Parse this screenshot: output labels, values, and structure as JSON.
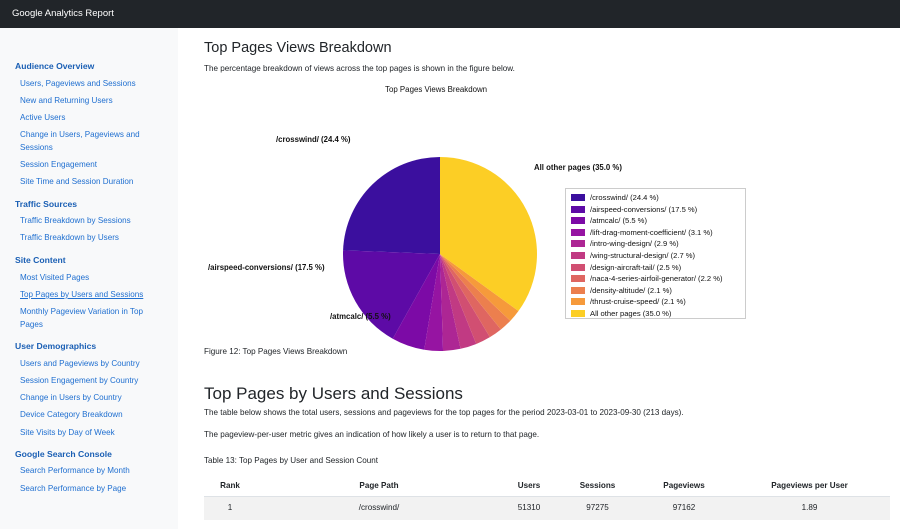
{
  "app_title": "Google Analytics Report",
  "sidebar": {
    "sections": [
      {
        "title": "Audience Overview",
        "items": [
          "Users, Pageviews and Sessions",
          "New and Returning Users",
          "Active Users",
          "Change in Users, Pageviews and Sessions",
          "Session Engagement",
          "Site Time and Session Duration"
        ]
      },
      {
        "title": "Traffic Sources",
        "items": [
          "Traffic Breakdown by Sessions",
          "Traffic Breakdown by Users"
        ]
      },
      {
        "title": "Site Content",
        "items": [
          "Most Visited Pages",
          "Top Pages by Users and Sessions",
          "Monthly Pageview Variation in Top Pages"
        ]
      },
      {
        "title": "User Demographics",
        "items": [
          "Users and Pageviews by Country",
          "Session Engagement by Country",
          "Change in Users by Country",
          "Device Category Breakdown",
          "Site Visits by Day of Week"
        ]
      },
      {
        "title": "Google Search Console",
        "items": [
          "Search Performance by Month",
          "Search Performance by Page"
        ]
      }
    ],
    "active_item": "Top Pages by Users and Sessions"
  },
  "section1": {
    "heading": "Top Pages Views Breakdown",
    "intro": "The percentage breakdown of views across the top pages is shown in the figure below.",
    "figure_caption": "Figure 12: Top Pages Views Breakdown"
  },
  "chart_data": {
    "type": "pie",
    "title": "Top Pages Views Breakdown",
    "legend_position": "right",
    "slices": [
      {
        "label": "/crosswind/ (24.4 %)",
        "value": 24.4,
        "color": "#3b0f9e"
      },
      {
        "label": "/airspeed-conversions/ (17.5 %)",
        "value": 17.5,
        "color": "#5d0aa6"
      },
      {
        "label": "/atmcalc/ (5.5 %)",
        "value": 5.5,
        "color": "#7c0aa6"
      },
      {
        "label": "/lift-drag-moment-coefficient/ (3.1 %)",
        "value": 3.1,
        "color": "#9614a2"
      },
      {
        "label": "/intro-wing-design/ (2.9 %)",
        "value": 2.9,
        "color": "#ad2694"
      },
      {
        "label": "/wing-structural-design/ (2.7 %)",
        "value": 2.7,
        "color": "#c13a83"
      },
      {
        "label": "/design-aircraft-tail/ (2.5 %)",
        "value": 2.5,
        "color": "#d14f72"
      },
      {
        "label": "/naca-4-series-airfoil-generator/ (2.2 %)",
        "value": 2.2,
        "color": "#df6661"
      },
      {
        "label": "/density-altitude/ (2.1 %)",
        "value": 2.1,
        "color": "#ec7f4e"
      },
      {
        "label": "/thrust-cruise-speed/ (2.1 %)",
        "value": 2.1,
        "color": "#f69a3b"
      },
      {
        "label": "All other pages (35.0 %)",
        "value": 35.0,
        "color": "#fcce25"
      }
    ],
    "outer_labels": [
      "/crosswind/ (24.4 %)",
      "/airspeed-conversions/ (17.5 %)",
      "/atmcalc/ (5.5 %)",
      "All other pages (35.0 %)"
    ]
  },
  "section2": {
    "heading": "Top Pages by Users and Sessions",
    "para1": "The table below shows the total users, sessions and pageviews for the top pages for the period 2023-03-01 to 2023-09-30 (213 days).",
    "para2": "The pageview-per-user metric gives an indication of how likely a user is to return to that page.",
    "table_caption": "Table 13: Top Pages by User and Session Count",
    "columns": [
      "Rank",
      "Page Path",
      "Users",
      "Sessions",
      "Pageviews",
      "Pageviews per User"
    ],
    "rows": [
      [
        "1",
        "/crosswind/",
        "51310",
        "97275",
        "97162",
        "1.89"
      ]
    ]
  }
}
